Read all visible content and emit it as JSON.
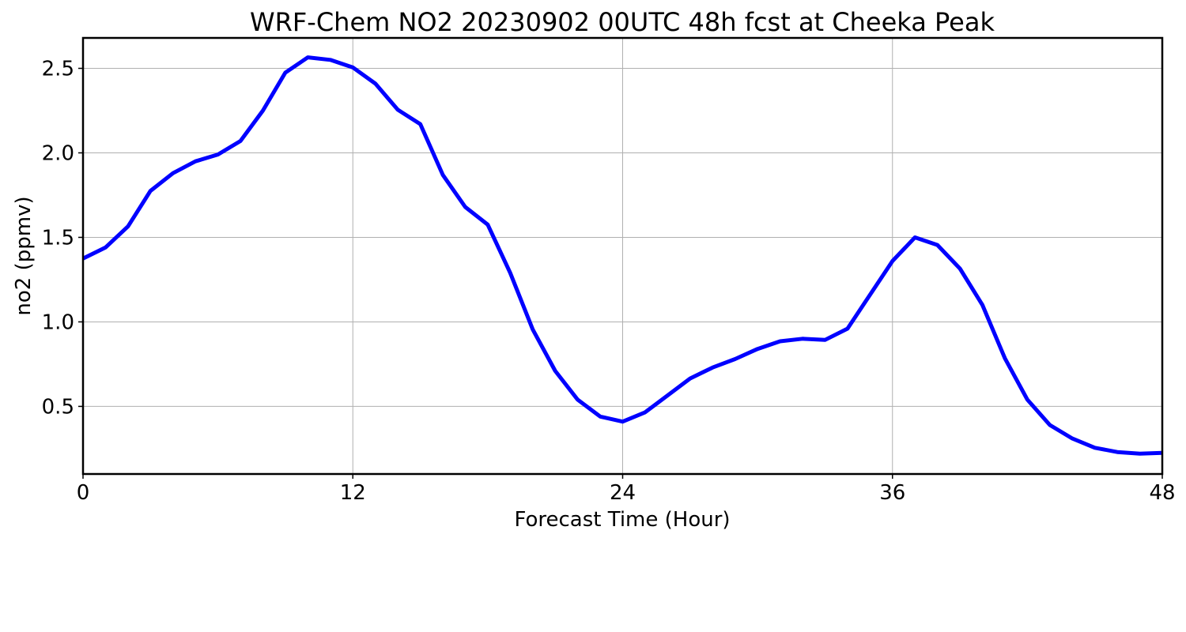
{
  "chart_data": {
    "type": "line",
    "title": "WRF-Chem NO2  20230902 00UTC 48h fcst at Cheeka Peak",
    "xlabel": "Forecast Time (Hour)",
    "ylabel": "no2  (ppmv)",
    "xlim": [
      0,
      48
    ],
    "ylim": [
      0.1,
      2.68
    ],
    "xticks": [
      0,
      12,
      24,
      36,
      48
    ],
    "xtick_labels": [
      "0",
      "12",
      "24",
      "36",
      "48"
    ],
    "yticks": [
      0.5,
      1.0,
      1.5,
      2.0,
      2.5
    ],
    "ytick_labels": [
      "0.5",
      "1.0",
      "1.5",
      "2.0",
      "2.5"
    ],
    "grid": true,
    "series": [
      {
        "color": "#0000ff",
        "x": [
          0,
          1,
          2,
          3,
          4,
          5,
          6,
          7,
          8,
          9,
          10,
          11,
          12,
          13,
          14,
          15,
          16,
          17,
          18,
          19,
          20,
          21,
          22,
          23,
          24,
          25,
          26,
          27,
          28,
          29,
          30,
          31,
          32,
          33,
          34,
          35,
          36,
          37,
          38,
          39,
          40,
          41,
          42,
          43,
          44,
          45,
          46,
          47,
          48
        ],
        "values": [
          1.375,
          1.44,
          1.565,
          1.775,
          1.88,
          1.95,
          1.99,
          2.07,
          2.25,
          2.475,
          2.565,
          2.55,
          2.505,
          2.41,
          2.255,
          2.17,
          1.87,
          1.68,
          1.575,
          1.29,
          0.955,
          0.71,
          0.54,
          0.44,
          0.41,
          0.465,
          0.565,
          0.665,
          0.73,
          0.78,
          0.84,
          0.885,
          0.9,
          0.893,
          0.96,
          1.16,
          1.36,
          1.5,
          1.455,
          1.315,
          1.1,
          0.785,
          0.54,
          0.39,
          0.31,
          0.255,
          0.23,
          0.22,
          0.225
        ]
      }
    ]
  }
}
